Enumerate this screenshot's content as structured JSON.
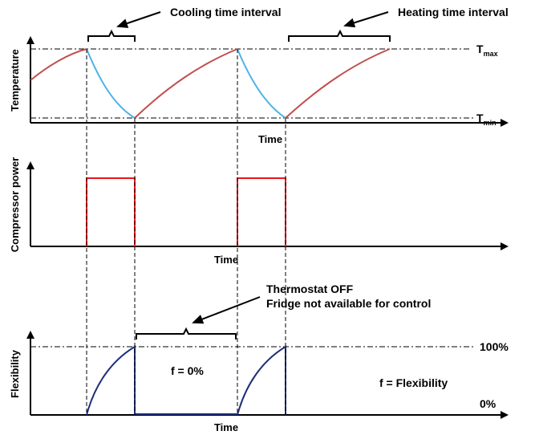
{
  "top": {
    "ylabel": "Temperature",
    "xlabel": "Time",
    "tmax": "T",
    "tmax_sub": "max",
    "tmin": "T",
    "tmin_sub": "min",
    "cooling_label": "Cooling time interval",
    "heating_label": "Heating time interval"
  },
  "middle": {
    "ylabel": "Compressor power",
    "xlabel": "Time"
  },
  "bottom": {
    "ylabel": "Flexibility",
    "xlabel": "Time",
    "pct_100": "100%",
    "pct_0": "0%",
    "f_zero": "f = 0%",
    "f_def": "f = Flexibility",
    "thermostat_line1": "Thermostat  OFF",
    "thermostat_line2": "Fridge not available for control"
  },
  "colors": {
    "heating": "#c0504d",
    "cooling": "#4fb3e6",
    "compressor": "#e8161b",
    "flexibility": "#1f2f7a"
  }
}
